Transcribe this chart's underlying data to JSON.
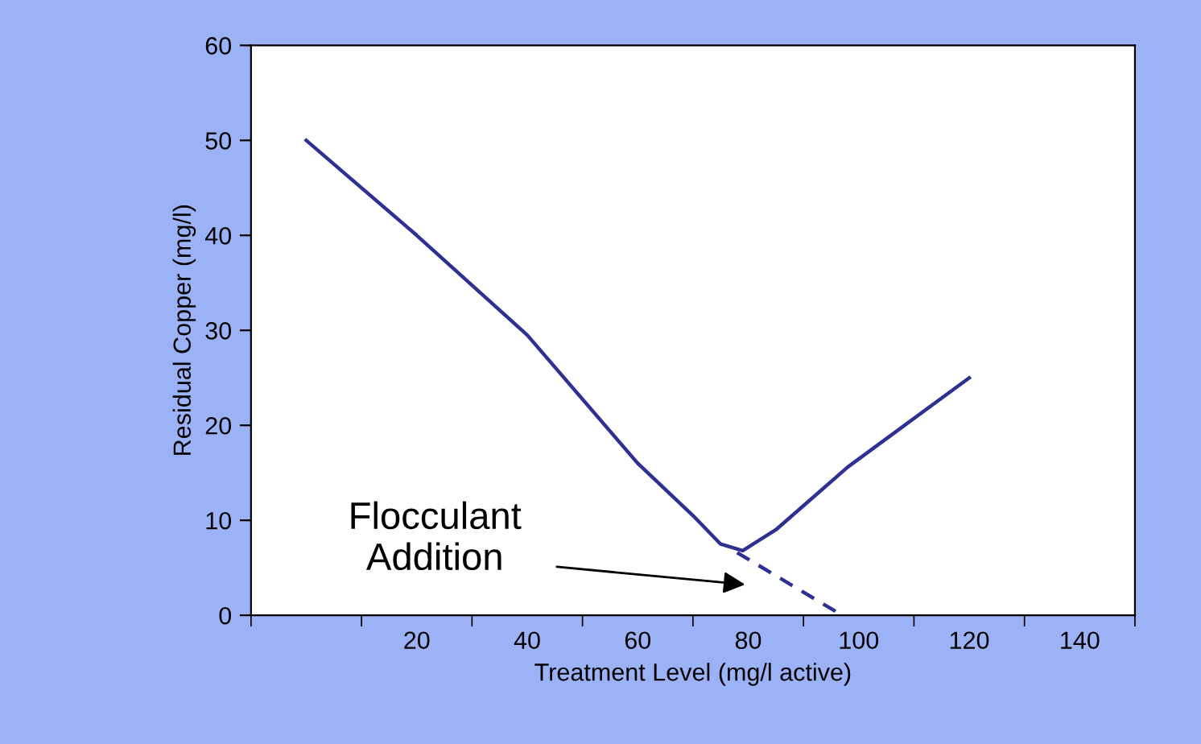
{
  "chart_data": {
    "type": "line",
    "xlabel": "Treatment Level (mg/l active)",
    "ylabel": "Residual Copper (mg/l)",
    "xlim": [
      -10,
      150
    ],
    "ylim": [
      0,
      60
    ],
    "xticks": [
      {
        "value": -10,
        "label": null
      },
      {
        "value": 10,
        "label": null
      },
      20,
      {
        "value": 30,
        "label": null
      },
      40,
      {
        "value": 50,
        "label": null
      },
      60,
      {
        "value": 70,
        "label": null
      },
      80,
      {
        "value": 90,
        "label": null
      },
      100,
      {
        "value": 110,
        "label": null
      },
      120,
      {
        "value": 130,
        "label": null
      },
      140,
      {
        "value": 150,
        "label": null
      }
    ],
    "yticks": [
      0,
      10,
      20,
      30,
      40,
      50,
      60
    ],
    "grid": false,
    "legend": false,
    "series": [
      {
        "color": "#2e3192",
        "line_style": "solid",
        "x": [
          0,
          20,
          40,
          60,
          70,
          75,
          79,
          85,
          98,
          120
        ],
        "values": [
          50,
          40,
          29.5,
          16,
          10.5,
          7.5,
          6.8,
          9,
          15.6,
          25
        ]
      },
      {
        "color": "#2e3192",
        "line_style": "dashed",
        "x": [
          78,
          97
        ],
        "values": [
          6.6,
          0
        ]
      }
    ],
    "annotations": [
      "Flocculant\nAddition"
    ]
  }
}
